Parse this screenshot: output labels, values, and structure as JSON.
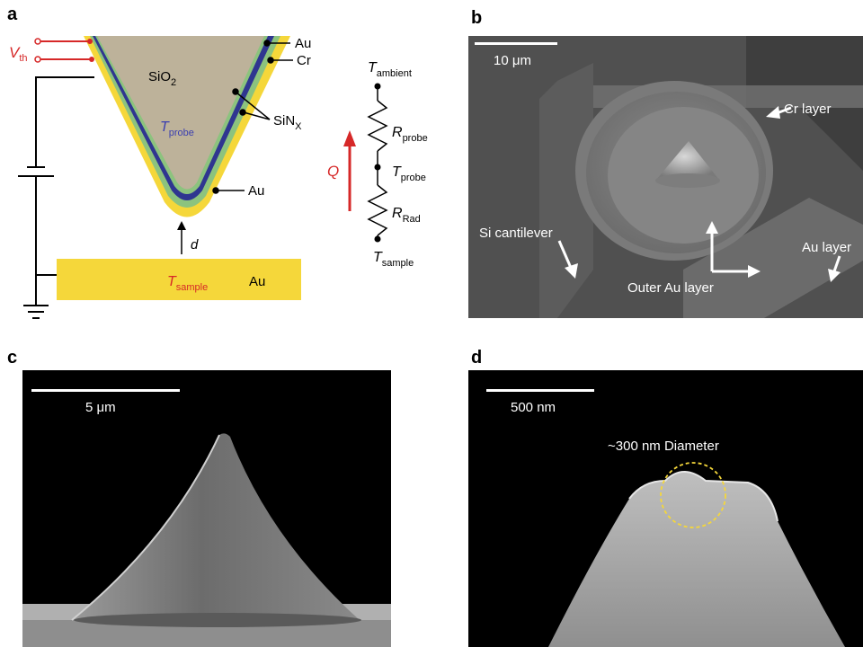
{
  "panels": {
    "a": {
      "letter": "a",
      "vth": "V",
      "vth_sub": "th",
      "sio2": "SiO",
      "sio2_sub": "2",
      "tprobe": "T",
      "tprobe_sub": "probe",
      "au_top": "Au",
      "cr": "Cr",
      "sinx": "SiN",
      "sinx_sub": "X",
      "au_tip": "Au",
      "d": "d",
      "tsample": "T",
      "tsample_sub": "sample",
      "au_sample": "Au",
      "circuit": {
        "t_ambient": "T",
        "t_ambient_sub": "ambient",
        "r_probe": "R",
        "r_probe_sub": "probe",
        "t_probe": "T",
        "t_probe_sub": "probe",
        "r_rad": "R",
        "r_rad_sub": "Rad",
        "t_sample": "T",
        "t_sample_sub": "sample",
        "q": "Q"
      }
    },
    "b": {
      "letter": "b",
      "scale": "10 μm",
      "cr_layer": "Cr layer",
      "si_cantilever": "Si cantilever",
      "au_layer": "Au layer",
      "outer_au_layer": "Outer Au layer"
    },
    "c": {
      "letter": "c",
      "scale": "5 μm"
    },
    "d": {
      "letter": "d",
      "scale": "500 nm",
      "diameter": "~300 nm Diameter"
    }
  },
  "colors": {
    "gold": "#f5d73a",
    "green": "#8cc37e",
    "navy": "#2f3690",
    "sio2": "#bdb29a",
    "red": "#d62828",
    "tprobe_text": "#3b3fb0"
  }
}
